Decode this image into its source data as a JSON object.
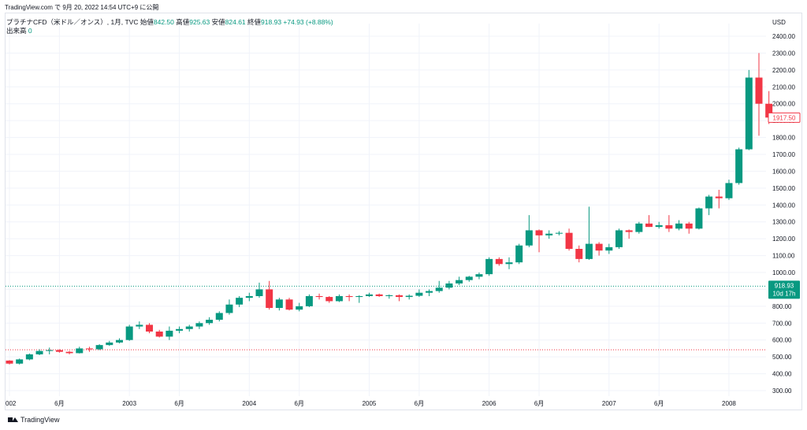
{
  "caption": "TradingView.com で 9月 20, 2022 14:54 UTC+9 に公開",
  "legend": {
    "symbol": "プラチナCFD（米ドル／オンス）, 1月, TVC",
    "open_label": "始値",
    "open": "842.50",
    "high_label": "高値",
    "high": "925.63",
    "low_label": "安値",
    "low": "824.61",
    "close_label": "終値",
    "close": "918.93",
    "change": "+74.93 (+8.88%)",
    "volume_label": "出来高",
    "volume": "0"
  },
  "footer": {
    "brand": "TradingView"
  },
  "colors": {
    "up": "#089981",
    "down": "#f23645",
    "grid": "#f0f3fa",
    "axis_text": "#131722"
  },
  "chart_data": {
    "type": "candlestick",
    "title": "プラチナCFD（米ドル／オンス）, 1月, TVC",
    "currency_label": "USD",
    "ylim": [
      250,
      2500
    ],
    "yticks": [
      300,
      400,
      500,
      600,
      700,
      800,
      900,
      1000,
      1100,
      1200,
      1300,
      1400,
      1500,
      1600,
      1700,
      1800,
      1900,
      2000,
      2100,
      2200,
      2300,
      2400
    ],
    "ytick_labels": [
      "300.00",
      "400.00",
      "500.00",
      "600.00",
      "700.00",
      "800.00",
      "900.00",
      "1000.00",
      "1100.00",
      "1200.00",
      "1300.00",
      "1400.00",
      "1500.00",
      "1600.00",
      "1700.00",
      "1800.00",
      "1900.00",
      "2000.00",
      "2100.00",
      "2200.00",
      "2300.00",
      "2400.00"
    ],
    "xticks": [
      {
        "index": 0,
        "label": "002"
      },
      {
        "index": 5,
        "label": "6月"
      },
      {
        "index": 12,
        "label": "2003"
      },
      {
        "index": 17,
        "label": "6月"
      },
      {
        "index": 24,
        "label": "2004"
      },
      {
        "index": 29,
        "label": "6月"
      },
      {
        "index": 36,
        "label": "2005"
      },
      {
        "index": 41,
        "label": "6月"
      },
      {
        "index": 48,
        "label": "2006"
      },
      {
        "index": 53,
        "label": "6月"
      },
      {
        "index": 60,
        "label": "2007"
      },
      {
        "index": 65,
        "label": "6月"
      },
      {
        "index": 72,
        "label": "2008"
      }
    ],
    "candles": [
      [
        478,
        480,
        455,
        460
      ],
      [
        460,
        490,
        455,
        485
      ],
      [
        485,
        520,
        480,
        515
      ],
      [
        515,
        545,
        510,
        535
      ],
      [
        535,
        555,
        515,
        540
      ],
      [
        540,
        545,
        525,
        530
      ],
      [
        530,
        535,
        515,
        522
      ],
      [
        522,
        560,
        520,
        550
      ],
      [
        550,
        560,
        530,
        545
      ],
      [
        545,
        575,
        540,
        570
      ],
      [
        570,
        595,
        565,
        585
      ],
      [
        585,
        610,
        580,
        600
      ],
      [
        600,
        690,
        595,
        680
      ],
      [
        680,
        710,
        665,
        690
      ],
      [
        690,
        700,
        640,
        650
      ],
      [
        650,
        660,
        615,
        620
      ],
      [
        620,
        680,
        600,
        655
      ],
      [
        655,
        680,
        640,
        665
      ],
      [
        665,
        690,
        650,
        680
      ],
      [
        680,
        710,
        665,
        700
      ],
      [
        700,
        735,
        690,
        720
      ],
      [
        720,
        770,
        710,
        760
      ],
      [
        760,
        840,
        750,
        810
      ],
      [
        810,
        860,
        795,
        850
      ],
      [
        850,
        880,
        830,
        860
      ],
      [
        860,
        940,
        850,
        900
      ],
      [
        900,
        950,
        780,
        790
      ],
      [
        790,
        850,
        775,
        840
      ],
      [
        840,
        850,
        775,
        780
      ],
      [
        780,
        820,
        770,
        800
      ],
      [
        800,
        870,
        795,
        860
      ],
      [
        860,
        875,
        840,
        855
      ],
      [
        855,
        860,
        820,
        830
      ],
      [
        830,
        870,
        825,
        860
      ],
      [
        860,
        870,
        830,
        855
      ],
      [
        855,
        865,
        820,
        860
      ],
      [
        860,
        880,
        855,
        870
      ],
      [
        870,
        875,
        855,
        860
      ],
      [
        860,
        870,
        845,
        865
      ],
      [
        865,
        870,
        830,
        855
      ],
      [
        855,
        870,
        840,
        862
      ],
      [
        862,
        900,
        855,
        880
      ],
      [
        880,
        900,
        860,
        890
      ],
      [
        890,
        950,
        880,
        910
      ],
      [
        910,
        950,
        900,
        935
      ],
      [
        935,
        975,
        925,
        955
      ],
      [
        955,
        980,
        945,
        975
      ],
      [
        975,
        1000,
        960,
        990
      ],
      [
        990,
        1090,
        980,
        1080
      ],
      [
        1080,
        1090,
        1040,
        1050
      ],
      [
        1050,
        1090,
        1020,
        1060
      ],
      [
        1060,
        1170,
        1050,
        1160
      ],
      [
        1160,
        1340,
        1150,
        1250
      ],
      [
        1250,
        1255,
        1120,
        1220
      ],
      [
        1220,
        1250,
        1200,
        1230
      ],
      [
        1230,
        1245,
        1220,
        1235
      ],
      [
        1235,
        1260,
        1130,
        1140
      ],
      [
        1140,
        1160,
        1060,
        1080
      ],
      [
        1080,
        1390,
        1075,
        1170
      ],
      [
        1170,
        1180,
        1100,
        1130
      ],
      [
        1130,
        1170,
        1110,
        1150
      ],
      [
        1150,
        1260,
        1140,
        1250
      ],
      [
        1250,
        1255,
        1200,
        1240
      ],
      [
        1240,
        1300,
        1230,
        1290
      ],
      [
        1290,
        1340,
        1270,
        1270
      ],
      [
        1270,
        1300,
        1260,
        1280
      ],
      [
        1280,
        1340,
        1240,
        1260
      ],
      [
        1260,
        1310,
        1250,
        1290
      ],
      [
        1290,
        1300,
        1230,
        1260
      ],
      [
        1260,
        1385,
        1255,
        1380
      ],
      [
        1380,
        1460,
        1340,
        1450
      ],
      [
        1450,
        1490,
        1380,
        1440
      ],
      [
        1440,
        1550,
        1430,
        1530
      ],
      [
        1530,
        1740,
        1520,
        1730
      ],
      [
        1730,
        2200,
        1725,
        2155
      ],
      [
        2155,
        2300,
        1810,
        2000
      ],
      [
        2000,
        2075,
        1880,
        1918
      ]
    ],
    "reference_lines": [
      {
        "value": 918.93,
        "color": "#089981",
        "style": "dotted",
        "label": "918.93",
        "sublabel": "10d 17h"
      },
      {
        "value": 542,
        "color": "#f23645",
        "style": "dotted",
        "label": ""
      }
    ],
    "last_price_badge": {
      "value": 1917.5,
      "label": "1917.50"
    },
    "volume": 0
  }
}
